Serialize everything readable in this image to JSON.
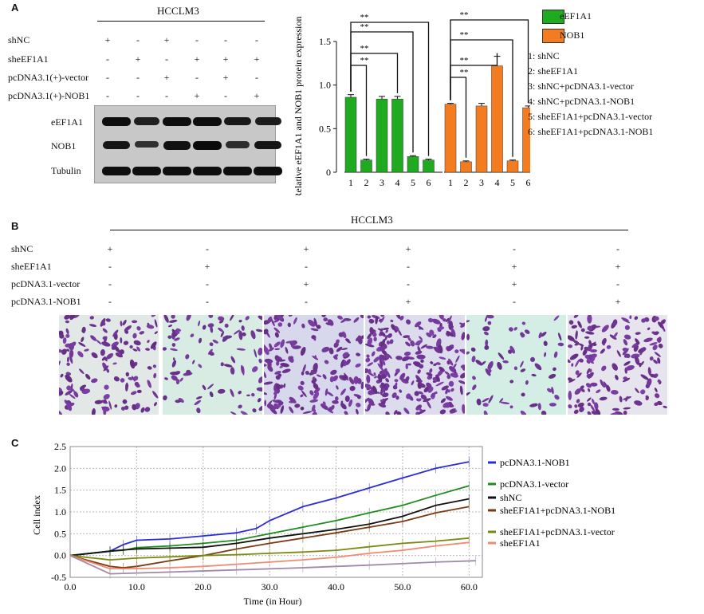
{
  "panels": {
    "a": "A",
    "b": "B",
    "c": "C"
  },
  "panel_a": {
    "cell_line": "HCCLM3",
    "rows": [
      {
        "label": "shNC",
        "signs": [
          "+",
          "-",
          "+",
          "-",
          "-",
          "-"
        ]
      },
      {
        "label": "sheEF1A1",
        "signs": [
          "-",
          "+",
          "-",
          "+",
          "+",
          "+"
        ]
      },
      {
        "label": "pcDNA3.1(+)-vector",
        "signs": [
          "-",
          "-",
          "+",
          "-",
          "+",
          "-"
        ]
      },
      {
        "label": "pcDNA3.1(+)-NOB1",
        "signs": [
          "-",
          "-",
          "-",
          "+",
          "-",
          "+"
        ]
      }
    ],
    "blot_labels": [
      "eEF1A1",
      "NOB1",
      "Tubulin"
    ],
    "band_intensity": {
      "eEF1A1": [
        0.95,
        0.7,
        0.95,
        0.95,
        0.8,
        0.75
      ],
      "NOB1": [
        0.85,
        0.45,
        0.9,
        1.0,
        0.5,
        0.85
      ],
      "Tubulin": [
        0.95,
        0.95,
        0.95,
        0.95,
        0.95,
        0.95
      ]
    }
  },
  "panel_b": {
    "cell_line": "HCCLM3",
    "rows": [
      {
        "label": "shNC",
        "signs": [
          "+",
          "-",
          "+",
          "+",
          "-",
          "-"
        ]
      },
      {
        "label": "sheEF1A1",
        "signs": [
          "-",
          "+",
          "-",
          "-",
          "+",
          "+"
        ]
      },
      {
        "label": "pcDNA3.1-vector",
        "signs": [
          "-",
          "-",
          "+",
          "-",
          "+",
          "-"
        ]
      },
      {
        "label": "pcDNA3.1-NOB1",
        "signs": [
          "-",
          "-",
          "-",
          "+",
          "-",
          "+"
        ]
      }
    ],
    "cell_density": [
      0.55,
      0.3,
      0.7,
      1.0,
      0.18,
      0.65
    ],
    "backgrounds": [
      "#e2e8e6",
      "#d8ece4",
      "#d8d8ec",
      "#dcdcec",
      "#d4eee6",
      "#e6e4ec"
    ]
  },
  "chart_data": [
    {
      "type": "bar",
      "ylabel": "Relative eEF1A1 and NOB1 protein expression",
      "ylim": [
        0,
        1.5
      ],
      "yticks": [
        "0",
        "0.5",
        "1.0",
        "1.5"
      ],
      "categories": [
        "1",
        "2",
        "3",
        "4",
        "5",
        "6"
      ],
      "series": [
        {
          "name": "eEF1A1",
          "color": "#1faa1f",
          "values": [
            0.86,
            0.14,
            0.84,
            0.84,
            0.18,
            0.14
          ],
          "errors": [
            0.03,
            0.01,
            0.03,
            0.03,
            0.01,
            0.01
          ]
        },
        {
          "name": "NOB1",
          "color": "#f47c20",
          "values": [
            0.78,
            0.12,
            0.76,
            1.22,
            0.13,
            0.74
          ],
          "errors": [
            0.01,
            0.01,
            0.03,
            0.11,
            0.01,
            0.02
          ]
        }
      ],
      "significance": "**",
      "legend_items": [
        "1: shNC",
        "2: sheEF1A1",
        "3: shNC+pcDNA3.1-vector",
        "4: shNC+pcDNA3.1-NOB1",
        "5: sheEF1A1+pcDNA3.1-vector",
        "6: sheEF1A1+pcDNA3.1-NOB1"
      ]
    },
    {
      "type": "line",
      "xlabel": "Time (in Hour)",
      "ylabel": "Cell index",
      "xlim": [
        0,
        62
      ],
      "ylim": [
        -0.5,
        2.5
      ],
      "xticks": [
        "0.0",
        "10.0",
        "20.0",
        "30.0",
        "40.0",
        "50.0",
        "60.0"
      ],
      "yticks": [
        "-0.5",
        "0.0",
        "0.5",
        "1.0",
        "1.5",
        "2.0",
        "2.5"
      ],
      "grid": true,
      "series": [
        {
          "name": "pcDNA3.1-NOB1",
          "color": "#2b2bdc",
          "x": [
            0,
            6,
            8,
            10,
            15,
            20,
            25,
            28,
            30,
            35,
            40,
            45,
            50,
            55,
            60
          ],
          "y": [
            0,
            0.1,
            0.25,
            0.35,
            0.38,
            0.45,
            0.52,
            0.62,
            0.8,
            1.12,
            1.32,
            1.55,
            1.78,
            2.0,
            2.15
          ]
        },
        {
          "name": "pcDNA3.1-vector",
          "color": "#1e8c1e",
          "x": [
            0,
            6,
            8,
            10,
            15,
            20,
            25,
            30,
            35,
            40,
            45,
            50,
            55,
            60
          ],
          "y": [
            0,
            0.1,
            0.12,
            0.18,
            0.22,
            0.28,
            0.35,
            0.5,
            0.65,
            0.8,
            0.98,
            1.15,
            1.38,
            1.6
          ]
        },
        {
          "name": "shNC",
          "color": "#111111",
          "x": [
            0,
            6,
            8,
            10,
            15,
            20,
            25,
            30,
            35,
            40,
            45,
            50,
            55,
            60
          ],
          "y": [
            0,
            0.1,
            0.13,
            0.15,
            0.17,
            0.19,
            0.28,
            0.4,
            0.5,
            0.6,
            0.72,
            0.9,
            1.15,
            1.3
          ]
        },
        {
          "name": "sheEF1A1+pcDNA3.1-NOB1",
          "color": "#7a3a12",
          "x": [
            0,
            6,
            8,
            10,
            15,
            20,
            25,
            30,
            35,
            40,
            45,
            50,
            55,
            60
          ],
          "y": [
            0,
            -0.25,
            -0.28,
            -0.25,
            -0.12,
            0,
            0.15,
            0.28,
            0.4,
            0.52,
            0.65,
            0.78,
            0.98,
            1.12
          ]
        },
        {
          "name": "sheEF1A1+pcDNA3.1-vector",
          "color": "#7a8a10",
          "x": [
            0,
            6,
            10,
            15,
            20,
            25,
            30,
            35,
            40,
            45,
            50,
            55,
            60
          ],
          "y": [
            0,
            -0.1,
            -0.06,
            -0.03,
            0,
            0.02,
            0.05,
            0.08,
            0.12,
            0.2,
            0.28,
            0.33,
            0.4
          ]
        },
        {
          "name": "sheEF1A1",
          "color": "#f08a70",
          "x": [
            0,
            6,
            10,
            15,
            20,
            25,
            30,
            35,
            40,
            45,
            50,
            55,
            60
          ],
          "y": [
            0,
            -0.3,
            -0.3,
            -0.28,
            -0.25,
            -0.2,
            -0.15,
            -0.1,
            -0.04,
            0.05,
            0.12,
            0.22,
            0.3
          ]
        },
        {
          "name": "",
          "color": "#a08aa8",
          "x": [
            0,
            6,
            15,
            25,
            35,
            45,
            55,
            61
          ],
          "y": [
            0,
            -0.42,
            -0.38,
            -0.33,
            -0.28,
            -0.22,
            -0.15,
            -0.12
          ]
        }
      ]
    }
  ]
}
